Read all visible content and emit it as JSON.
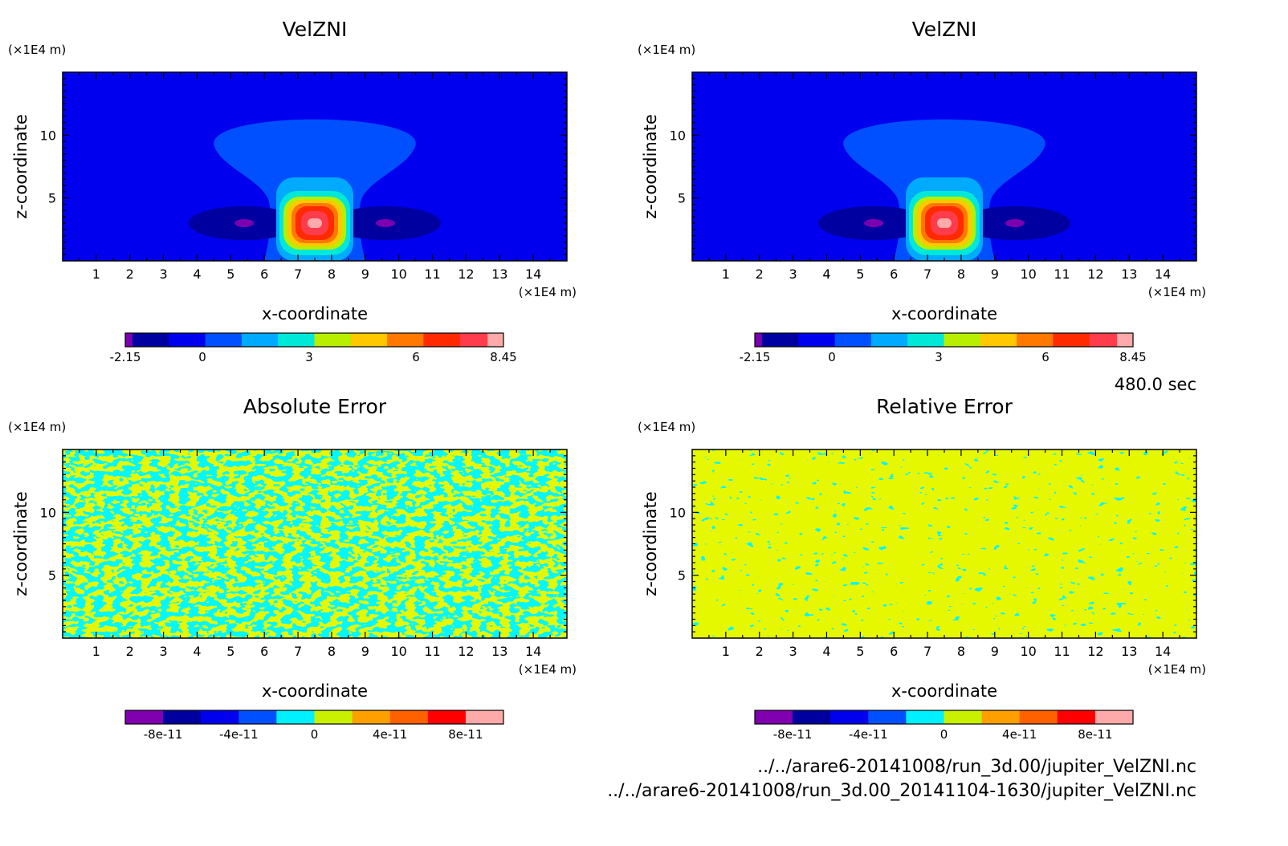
{
  "panels": [
    {
      "title": "VelZNI",
      "z_unit": "(×1E4 m)",
      "x_unit": "(×1E4 m)",
      "xlabel": "x-coordinate",
      "ylabel": "z-coordinate",
      "colorbar_labels": [
        "-2.15",
        "0",
        "3",
        "6",
        "8.45"
      ]
    },
    {
      "title": "VelZNI",
      "z_unit": "(×1E4 m)",
      "x_unit": "(×1E4 m)",
      "xlabel": "x-coordinate",
      "ylabel": "z-coordinate",
      "colorbar_labels": [
        "-2.15",
        "0",
        "3",
        "6",
        "8.45"
      ]
    },
    {
      "title": "Absolute Error",
      "z_unit": "(×1E4 m)",
      "x_unit": "(×1E4 m)",
      "xlabel": "x-coordinate",
      "ylabel": "z-coordinate",
      "colorbar_labels": [
        "-8e-11",
        "-4e-11",
        "0",
        "4e-11",
        "8e-11"
      ]
    },
    {
      "title": "Relative Error",
      "z_unit": "(×1E4 m)",
      "x_unit": "(×1E4 m)",
      "xlabel": "x-coordinate",
      "ylabel": "z-coordinate",
      "colorbar_labels": [
        "-8e-11",
        "-4e-11",
        "0",
        "4e-11",
        "8e-11"
      ]
    }
  ],
  "time_label": "480.0 sec",
  "file_paths": [
    "../../arare6-20141008/run_3d.00/jupiter_VelZNI.nc",
    "../../arare6-20141008/run_3d.00_20141104-1630/jupiter_VelZNI.nc"
  ],
  "chart_data": [
    {
      "type": "heatmap",
      "title": "VelZNI",
      "xlabel": "x-coordinate",
      "ylabel": "z-coordinate",
      "x_unit": "(×1E4 m)",
      "z_unit": "(×1E4 m)",
      "xlim": [
        0,
        15
      ],
      "zlim": [
        0,
        15
      ],
      "x_ticks": [
        1,
        2,
        3,
        4,
        5,
        6,
        7,
        8,
        9,
        10,
        11,
        12,
        13,
        14
      ],
      "z_ticks": [
        5,
        10
      ],
      "colorbar": {
        "min": -2.15,
        "max": 8.45,
        "tick_values": [
          -2.15,
          0,
          3,
          6,
          8.45
        ],
        "colors": [
          "#7a00b0",
          "#0000a0",
          "#0000ee",
          "#0050ff",
          "#00aaff",
          "#00e8d8",
          "#b8ee00",
          "#ffc800",
          "#ff7800",
          "#ff2a00",
          "#ff3c4c",
          "#ffaaaa"
        ]
      },
      "features": [
        {
          "kind": "updraft_max",
          "x": 7.5,
          "z": 3.0,
          "value": 8.45
        },
        {
          "kind": "downdraft_min",
          "x": 5.4,
          "z": 3.0,
          "value": -2.15
        },
        {
          "kind": "downdraft_min",
          "x": 9.6,
          "z": 3.0,
          "value": -2.15
        },
        {
          "kind": "weak_updraft_cap",
          "x": 7.5,
          "z": 8.5,
          "value": 0.5
        }
      ]
    },
    {
      "type": "heatmap",
      "title": "VelZNI",
      "xlabel": "x-coordinate",
      "ylabel": "z-coordinate",
      "x_unit": "(×1E4 m)",
      "z_unit": "(×1E4 m)",
      "xlim": [
        0,
        15
      ],
      "zlim": [
        0,
        15
      ],
      "x_ticks": [
        1,
        2,
        3,
        4,
        5,
        6,
        7,
        8,
        9,
        10,
        11,
        12,
        13,
        14
      ],
      "z_ticks": [
        5,
        10
      ],
      "colorbar": {
        "min": -2.15,
        "max": 8.45,
        "tick_values": [
          -2.15,
          0,
          3,
          6,
          8.45
        ],
        "colors": [
          "#7a00b0",
          "#0000a0",
          "#0000ee",
          "#0050ff",
          "#00aaff",
          "#00e8d8",
          "#b8ee00",
          "#ffc800",
          "#ff7800",
          "#ff2a00",
          "#ff3c4c",
          "#ffaaaa"
        ]
      },
      "features": [
        {
          "kind": "updraft_max",
          "x": 7.5,
          "z": 3.0,
          "value": 8.45
        },
        {
          "kind": "downdraft_min",
          "x": 5.4,
          "z": 3.0,
          "value": -2.15
        },
        {
          "kind": "downdraft_min",
          "x": 9.6,
          "z": 3.0,
          "value": -2.15
        },
        {
          "kind": "weak_updraft_cap",
          "x": 7.5,
          "z": 8.5,
          "value": 0.5
        }
      ]
    },
    {
      "type": "heatmap",
      "title": "Absolute Error",
      "xlabel": "x-coordinate",
      "ylabel": "z-coordinate",
      "x_unit": "(×1E4 m)",
      "z_unit": "(×1E4 m)",
      "xlim": [
        0,
        15
      ],
      "zlim": [
        0,
        15
      ],
      "x_ticks": [
        1,
        2,
        3,
        4,
        5,
        6,
        7,
        8,
        9,
        10,
        11,
        12,
        13,
        14
      ],
      "z_ticks": [
        5,
        10
      ],
      "colorbar": {
        "min": -1e-10,
        "max": 1e-10,
        "tick_values": [
          -8e-11,
          -4e-11,
          0,
          4e-11,
          8e-11
        ],
        "colors": [
          "#8000b0",
          "#0000a0",
          "#0000ee",
          "#0050ff",
          "#00f0ff",
          "#c8f000",
          "#ffa000",
          "#ff6000",
          "#ff0000",
          "#ffaaaa"
        ]
      },
      "pattern": "noise with values near 0 (cyan/yellow-green bins)"
    },
    {
      "type": "heatmap",
      "title": "Relative Error",
      "xlabel": "x-coordinate",
      "ylabel": "z-coordinate",
      "x_unit": "(×1E4 m)",
      "z_unit": "(×1E4 m)",
      "xlim": [
        0,
        15
      ],
      "zlim": [
        0,
        15
      ],
      "x_ticks": [
        1,
        2,
        3,
        4,
        5,
        6,
        7,
        8,
        9,
        10,
        11,
        12,
        13,
        14
      ],
      "z_ticks": [
        5,
        10
      ],
      "colorbar": {
        "min": -1e-10,
        "max": 1e-10,
        "tick_values": [
          -8e-11,
          -4e-11,
          0,
          4e-11,
          8e-11
        ],
        "colors": [
          "#8000b0",
          "#0000a0",
          "#0000ee",
          "#0050ff",
          "#00f0ff",
          "#c8f000",
          "#ffa000",
          "#ff6000",
          "#ff0000",
          "#ffaaaa"
        ]
      },
      "pattern": "noise with values near 0 (cyan/yellow-green bins)"
    }
  ]
}
